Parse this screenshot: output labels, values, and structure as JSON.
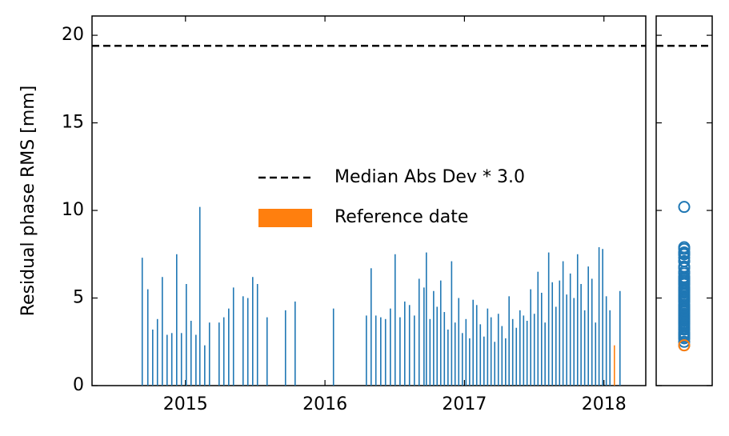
{
  "chart_data": {
    "type": "bar",
    "ylabel": "Residual phase RMS [mm]",
    "xlim": [
      2014.33,
      2018.3
    ],
    "xticks": [
      2015,
      2016,
      2017,
      2018
    ],
    "ylim": [
      0,
      21.1
    ],
    "yticks": [
      0,
      5,
      10,
      15,
      20
    ],
    "color": "#1f77b4",
    "x": [
      2014.69,
      2014.73,
      2014.765,
      2014.799,
      2014.834,
      2014.868,
      2014.902,
      2014.937,
      2014.971,
      2015.006,
      2015.04,
      2015.075,
      2015.103,
      2015.138,
      2015.172,
      2015.241,
      2015.275,
      2015.31,
      2015.344,
      2015.413,
      2015.447,
      2015.482,
      2015.516,
      2015.585,
      2015.717,
      2015.786,
      2016.061,
      2016.297,
      2016.331,
      2016.365,
      2016.4,
      2016.434,
      2016.469,
      2016.503,
      2016.538,
      2016.572,
      2016.606,
      2016.641,
      2016.675,
      2016.71,
      2016.727,
      2016.753,
      2016.779,
      2016.804,
      2016.83,
      2016.856,
      2016.882,
      2016.908,
      2016.933,
      2016.959,
      2016.985,
      2017.011,
      2017.037,
      2017.062,
      2017.088,
      2017.114,
      2017.14,
      2017.166,
      2017.191,
      2017.217,
      2017.243,
      2017.269,
      2017.295,
      2017.32,
      2017.346,
      2017.372,
      2017.398,
      2017.424,
      2017.449,
      2017.475,
      2017.501,
      2017.527,
      2017.553,
      2017.578,
      2017.604,
      2017.63,
      2017.656,
      2017.682,
      2017.707,
      2017.733,
      2017.759,
      2017.785,
      2017.811,
      2017.836,
      2017.862,
      2017.888,
      2017.914,
      2017.94,
      2017.965,
      2017.991,
      2018.017,
      2018.043,
      2018.115
    ],
    "values": [
      7.3,
      5.5,
      3.2,
      3.8,
      6.2,
      2.9,
      3.0,
      7.5,
      3.0,
      5.8,
      3.7,
      2.9,
      10.2,
      2.3,
      3.6,
      3.6,
      3.9,
      4.4,
      5.6,
      5.1,
      5.0,
      6.2,
      5.8,
      3.9,
      4.3,
      4.8,
      4.4,
      4.0,
      6.7,
      4.0,
      3.9,
      3.8,
      4.4,
      7.5,
      3.9,
      4.8,
      4.6,
      4.0,
      6.1,
      5.6,
      7.6,
      3.8,
      5.4,
      4.5,
      6.0,
      4.2,
      3.2,
      7.1,
      3.6,
      5.0,
      3.0,
      3.8,
      2.7,
      4.9,
      4.6,
      3.5,
      2.8,
      4.4,
      3.9,
      2.5,
      4.1,
      3.4,
      2.7,
      5.1,
      3.8,
      3.3,
      4.3,
      4.0,
      3.7,
      5.5,
      4.1,
      6.5,
      5.3,
      3.6,
      7.6,
      5.9,
      4.5,
      6.0,
      7.1,
      5.2,
      6.4,
      5.0,
      7.5,
      5.8,
      4.3,
      6.8,
      6.1,
      3.6,
      7.9,
      7.8,
      5.1,
      4.3,
      5.4
    ],
    "reference": {
      "name": "Reference date",
      "x": 2018.075,
      "value": 2.3,
      "color": "#ff7f0e"
    },
    "threshold": {
      "name": "Median Abs Dev * 3.0",
      "value": 19.4,
      "color": "#000000"
    }
  }
}
